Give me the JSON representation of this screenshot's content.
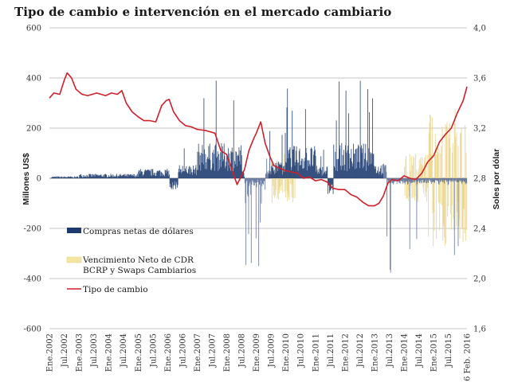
{
  "chart_data": {
    "type": "bar+line",
    "title": "Tipo de cambio e intervención en el mercado cambiario",
    "ylabel_left": "Millones  US$",
    "ylabel_right": "Soles por dólar",
    "ylim_left": [
      -600,
      600
    ],
    "ylim_right": [
      1.6,
      4.0
    ],
    "yticks_left": [
      "600",
      "400",
      "200",
      "0",
      "-200",
      "-400",
      "-600"
    ],
    "yticks_right": [
      "4,0",
      "3,6",
      "3,2",
      "2,8",
      "2,4",
      "2,0",
      "1,6"
    ],
    "grid": true,
    "x_tick_labels": [
      "Ene.2002",
      "Jul.2002",
      "Ene.2003",
      "Jul.2003",
      "Ene.2004",
      "Jul.2004",
      "Ene.2005",
      "Jul.2005",
      "Ene.2006",
      "Jul.2006",
      "Ene.2007",
      "Jul.2007",
      "Ene.2008",
      "Jul.2008",
      "Ene.2009",
      "Jul.2009",
      "Ene.2010",
      "Jul.2010",
      "Ene.2011",
      "Jul.2011",
      "Ene.2012",
      "Jul.2012",
      "Ene.2013",
      "Jul.2013",
      "Ene.2014",
      "Jul.2014",
      "Ene.2015",
      "Jul.2015",
      "16 Feb. 2016"
    ],
    "legend_position": "left-middle",
    "series": [
      {
        "name": "Compras netas de dólares",
        "type": "bar",
        "color": "#1c3a6e"
      },
      {
        "name": "Vencimiento Neto de CDR BCRP y Swaps Cambiarios",
        "type": "bar",
        "color": "#f3e6a3"
      },
      {
        "name": "Tipo de cambio",
        "type": "line",
        "color": "#d0202a"
      }
    ],
    "exchange_rate": {
      "t": [
        2002.0,
        2002.15,
        2002.35,
        2002.5,
        2002.6,
        2002.75,
        2002.9,
        2003.1,
        2003.3,
        2003.6,
        2003.9,
        2004.1,
        2004.3,
        2004.45,
        2004.6,
        2004.8,
        2005.0,
        2005.2,
        2005.4,
        2005.6,
        2005.8,
        2005.95,
        2006.05,
        2006.2,
        2006.4,
        2006.6,
        2006.8,
        2007.0,
        2007.3,
        2007.6,
        2007.8,
        2008.0,
        2008.2,
        2008.35,
        2008.5,
        2008.6,
        2008.75,
        2008.9,
        2009.0,
        2009.15,
        2009.3,
        2009.45,
        2009.6,
        2009.8,
        2010.0,
        2010.2,
        2010.4,
        2010.6,
        2010.8,
        2011.0,
        2011.2,
        2011.4,
        2011.5,
        2011.6,
        2011.8,
        2012.0,
        2012.2,
        2012.4,
        2012.6,
        2012.8,
        2013.0,
        2013.15,
        2013.3,
        2013.45,
        2013.6,
        2013.8,
        2014.0,
        2014.2,
        2014.4,
        2014.6,
        2014.8,
        2015.0,
        2015.2,
        2015.4,
        2015.6,
        2015.8,
        2016.0,
        2016.13
      ],
      "v": [
        3.44,
        3.48,
        3.47,
        3.58,
        3.64,
        3.6,
        3.51,
        3.47,
        3.46,
        3.48,
        3.46,
        3.48,
        3.47,
        3.5,
        3.4,
        3.33,
        3.29,
        3.26,
        3.26,
        3.25,
        3.38,
        3.42,
        3.43,
        3.33,
        3.26,
        3.22,
        3.21,
        3.19,
        3.18,
        3.16,
        3.02,
        2.99,
        2.85,
        2.75,
        2.82,
        2.87,
        3.02,
        3.11,
        3.16,
        3.25,
        3.08,
        2.98,
        2.9,
        2.88,
        2.86,
        2.85,
        2.84,
        2.8,
        2.81,
        2.78,
        2.79,
        2.77,
        2.74,
        2.72,
        2.71,
        2.71,
        2.67,
        2.65,
        2.61,
        2.58,
        2.58,
        2.6,
        2.66,
        2.76,
        2.79,
        2.78,
        2.82,
        2.8,
        2.79,
        2.84,
        2.93,
        2.98,
        3.09,
        3.15,
        3.2,
        3.32,
        3.42,
        3.53
      ]
    }
  }
}
